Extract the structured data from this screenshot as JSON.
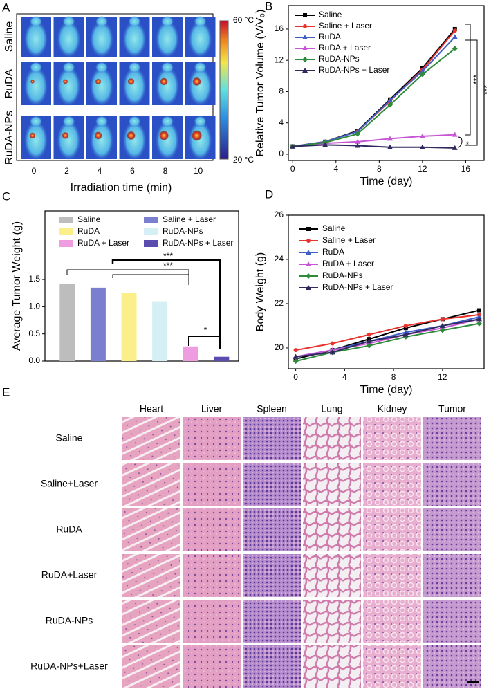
{
  "panel_labels": [
    "A",
    "B",
    "C",
    "D",
    "E"
  ],
  "panel_a": {
    "rows": [
      "Saline",
      "RuDA",
      "RuDA-NPs"
    ],
    "times": [
      0,
      2,
      4,
      6,
      8,
      10
    ],
    "xlabel": "Irradiation time (min)",
    "colorbar": {
      "max": "60 °C",
      "min": "20 °C"
    }
  },
  "chart_data": [
    {
      "type": "line",
      "ylabel": "Relative Tumor Volume (V/V₀)",
      "xlabel": "Time (day)",
      "x": [
        0,
        3,
        6,
        9,
        12,
        15
      ],
      "xlim": [
        -0.4,
        17.7
      ],
      "xticks": [
        0,
        4,
        8,
        12,
        16
      ],
      "ylim": [
        -0.8,
        19
      ],
      "yticks": [
        0,
        4,
        8,
        12,
        16
      ],
      "series": [
        {
          "name": "Saline",
          "color": "#000000",
          "values": [
            1,
            1.6,
            3,
            7,
            11,
            16
          ]
        },
        {
          "name": "Saline + Laser",
          "color": "#e8322e",
          "values": [
            1,
            1.6,
            2.9,
            6.8,
            10.8,
            15.8
          ]
        },
        {
          "name": "RuDA",
          "color": "#3f5fc8",
          "values": [
            1,
            1.6,
            2.9,
            6.9,
            10.6,
            15
          ]
        },
        {
          "name": "RuDA + Laser",
          "color": "#c855d6",
          "values": [
            1,
            1.4,
            1.6,
            2,
            2.3,
            2.5
          ]
        },
        {
          "name": "RuDA-NPs",
          "color": "#2e8b3a",
          "values": [
            1,
            1.5,
            2.6,
            6.3,
            10.2,
            13.5
          ]
        },
        {
          "name": "RuDA-NPs + Laser",
          "color": "#2f2a5e",
          "values": [
            1,
            1.2,
            1.1,
            0.9,
            0.9,
            0.8
          ]
        }
      ],
      "annotations": [
        "***",
        "***",
        "*"
      ]
    },
    {
      "type": "bar",
      "ylabel": "Average Tumor Weight (g)",
      "categories": [
        "Saline",
        "Saline + Laser",
        "RuDA",
        "RuDA-NPs",
        "RuDA + Laser",
        "RuDA-NPs + Laser"
      ],
      "values": [
        1.42,
        1.35,
        1.25,
        1.1,
        0.27,
        0.08
      ],
      "colors": [
        "#bdbdbd",
        "#7b7fd0",
        "#fbef8a",
        "#d4f0f4",
        "#ee9ee0",
        "#5b4cb0"
      ],
      "ylim": [
        0,
        2.76
      ],
      "yticks": [
        {
          "value": 0,
          "label": "0.0"
        },
        {
          "value": 0.5,
          "label": "0.5"
        },
        {
          "value": 1,
          "label": "1.0"
        },
        {
          "value": 1.5,
          "label": "1.5"
        }
      ],
      "annotations": [
        "***",
        "***",
        "*"
      ]
    },
    {
      "type": "line",
      "ylabel": "Body Weight (g)",
      "xlabel": "Time (day)",
      "x": [
        0,
        3,
        6,
        9,
        12,
        15
      ],
      "xlim": [
        -0.6,
        15.4
      ],
      "xticks": [
        0,
        4,
        8,
        12
      ],
      "ylim": [
        19.06,
        26
      ],
      "yticks": [
        20,
        22,
        24,
        26
      ],
      "series": [
        {
          "name": "Saline",
          "color": "#000000",
          "values": [
            19.5,
            19.9,
            20.4,
            20.9,
            21.3,
            21.7
          ]
        },
        {
          "name": "Saline + Laser",
          "color": "#e8322e",
          "values": [
            19.9,
            20.2,
            20.6,
            21,
            21.3,
            21.5
          ]
        },
        {
          "name": "RuDA",
          "color": "#3f5fc8",
          "values": [
            19.6,
            19.9,
            20.3,
            20.7,
            21,
            21.4
          ]
        },
        {
          "name": "RuDA + Laser",
          "color": "#c855d6",
          "values": [
            19.6,
            19.9,
            20.2,
            20.6,
            20.9,
            21.3
          ]
        },
        {
          "name": "RuDA-NPs",
          "color": "#2e8b3a",
          "values": [
            19.4,
            19.8,
            20.1,
            20.5,
            20.8,
            21.1
          ]
        },
        {
          "name": "RuDA-NPs + Laser",
          "color": "#2f2a5e",
          "values": [
            19.6,
            19.8,
            20.3,
            20.6,
            21,
            21.3
          ]
        }
      ]
    }
  ],
  "panel_e": {
    "columns": [
      "Heart",
      "Liver",
      "Spleen",
      "Lung",
      "Kidney",
      "Tumor"
    ],
    "rows": [
      "Saline",
      "Saline+Laser",
      "RuDA",
      "RuDA+Laser",
      "RuDA-NPs",
      "RuDA-NPs+Laser"
    ]
  }
}
